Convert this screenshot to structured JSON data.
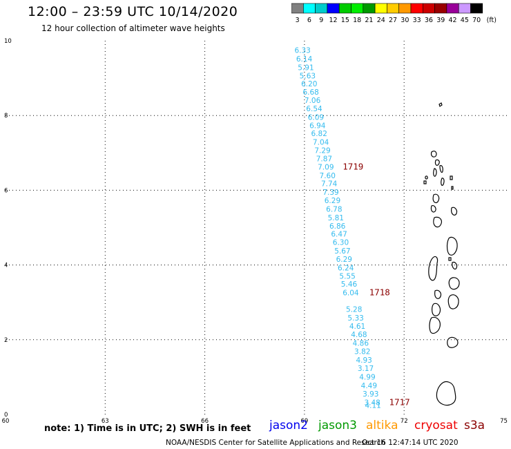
{
  "header": {
    "title": "12:00 – 23:59 UTC 10/14/2020",
    "subtitle": "12 hour collection of altimeter wave heights"
  },
  "colorbar": {
    "unit_label": "(ft)",
    "bins": [
      {
        "label": "3",
        "color": "#808080"
      },
      {
        "label": "6",
        "color": "#00ffff"
      },
      {
        "label": "9",
        "color": "#00cccc"
      },
      {
        "label": "12",
        "color": "#0000ff"
      },
      {
        "label": "15",
        "color": "#00cc00"
      },
      {
        "label": "18",
        "color": "#00ee00"
      },
      {
        "label": "21",
        "color": "#009900"
      },
      {
        "label": "24",
        "color": "#ffff00"
      },
      {
        "label": "27",
        "color": "#ffcc00"
      },
      {
        "label": "30",
        "color": "#ff9900"
      },
      {
        "label": "33",
        "color": "#ff0000"
      },
      {
        "label": "36",
        "color": "#cc0000"
      },
      {
        "label": "39",
        "color": "#990000"
      },
      {
        "label": "42",
        "color": "#990099"
      },
      {
        "label": "45",
        "color": "#cc99ff"
      },
      {
        "label": "70",
        "color": "#000000"
      }
    ]
  },
  "map": {
    "lon_ticks": [
      "60",
      "63",
      "66",
      "69",
      "72",
      "75"
    ],
    "lat_ticks": [
      "0",
      "2",
      "4",
      "6",
      "8",
      "10"
    ],
    "track_color": "#33bbee",
    "time_label_color": "#8b0000",
    "wave_heights": [
      {
        "lon": 68.7,
        "lat": 9.75,
        "value": "6.33"
      },
      {
        "lon": 68.75,
        "lat": 9.52,
        "value": "6.14"
      },
      {
        "lon": 68.8,
        "lat": 9.29,
        "value": "5.91"
      },
      {
        "lon": 68.85,
        "lat": 9.07,
        "value": "5.63"
      },
      {
        "lon": 68.9,
        "lat": 8.85,
        "value": "6.20"
      },
      {
        "lon": 68.95,
        "lat": 8.63,
        "value": "6.68"
      },
      {
        "lon": 69.0,
        "lat": 8.41,
        "value": "7.06"
      },
      {
        "lon": 69.05,
        "lat": 8.19,
        "value": "6.54"
      },
      {
        "lon": 69.1,
        "lat": 7.96,
        "value": "6.09"
      },
      {
        "lon": 69.15,
        "lat": 7.74,
        "value": "6.94"
      },
      {
        "lon": 69.2,
        "lat": 7.52,
        "value": "6.82"
      },
      {
        "lon": 69.25,
        "lat": 7.29,
        "value": "7.04"
      },
      {
        "lon": 69.3,
        "lat": 7.07,
        "value": "7.29"
      },
      {
        "lon": 69.35,
        "lat": 6.85,
        "value": "7.87"
      },
      {
        "lon": 69.4,
        "lat": 6.63,
        "value": "7.09"
      },
      {
        "lon": 69.45,
        "lat": 6.4,
        "value": "7.60"
      },
      {
        "lon": 69.5,
        "lat": 6.18,
        "value": "7.74"
      },
      {
        "lon": 69.55,
        "lat": 5.95,
        "value": "7.39"
      },
      {
        "lon": 69.6,
        "lat": 5.73,
        "value": "6.29"
      },
      {
        "lon": 69.65,
        "lat": 5.5,
        "value": "6.78"
      },
      {
        "lon": 69.7,
        "lat": 5.27,
        "value": "5.81"
      },
      {
        "lon": 69.75,
        "lat": 5.05,
        "value": "6.86"
      },
      {
        "lon": 69.8,
        "lat": 4.83,
        "value": "6.47"
      },
      {
        "lon": 69.85,
        "lat": 4.61,
        "value": "6.30"
      },
      {
        "lon": 69.9,
        "lat": 4.38,
        "value": "5.67"
      },
      {
        "lon": 69.95,
        "lat": 4.16,
        "value": "6.29"
      },
      {
        "lon": 70.0,
        "lat": 3.93,
        "value": "6.24"
      },
      {
        "lon": 70.05,
        "lat": 3.71,
        "value": "5.55"
      },
      {
        "lon": 70.1,
        "lat": 3.49,
        "value": "5.46"
      },
      {
        "lon": 70.15,
        "lat": 3.26,
        "value": "6.04"
      },
      {
        "lon": 70.25,
        "lat": 2.82,
        "value": "5.28"
      },
      {
        "lon": 70.3,
        "lat": 2.59,
        "value": "5.33"
      },
      {
        "lon": 70.35,
        "lat": 2.37,
        "value": "4.61"
      },
      {
        "lon": 70.4,
        "lat": 2.14,
        "value": "4.68"
      },
      {
        "lon": 70.45,
        "lat": 1.91,
        "value": "4.86"
      },
      {
        "lon": 70.5,
        "lat": 1.69,
        "value": "3.82"
      },
      {
        "lon": 70.55,
        "lat": 1.46,
        "value": "4.93"
      },
      {
        "lon": 70.6,
        "lat": 1.24,
        "value": "3.17"
      },
      {
        "lon": 70.65,
        "lat": 1.01,
        "value": "4.99"
      },
      {
        "lon": 70.7,
        "lat": 0.78,
        "value": "4.49"
      },
      {
        "lon": 70.75,
        "lat": 0.55,
        "value": "3.93"
      },
      {
        "lon": 70.8,
        "lat": 0.32,
        "value": "3.48"
      },
      {
        "lon": 70.82,
        "lat": 0.25,
        "value": "4.11"
      }
    ],
    "time_labels": [
      {
        "lon": 70.15,
        "lat": 6.63,
        "value": "1719"
      },
      {
        "lon": 70.95,
        "lat": 3.26,
        "value": "1718"
      },
      {
        "lon": 71.55,
        "lat": 0.32,
        "value": "1717"
      }
    ]
  },
  "note": "note:  1) Time is in UTC;  2) SWH is in feet",
  "legend": [
    {
      "label": "jason2",
      "color": "#0000ee"
    },
    {
      "label": "jason3",
      "color": "#009900"
    },
    {
      "label": "altika",
      "color": "#ff9900"
    },
    {
      "label": "cryosat",
      "color": "#ee0000"
    },
    {
      "label": "s3a",
      "color": "#8b0000"
    }
  ],
  "footer": {
    "credit": "NOAA/NESDIS Center for Satellite Applications and Research",
    "timestamp": "Oct 16 12:47:14 UTC 2020"
  }
}
